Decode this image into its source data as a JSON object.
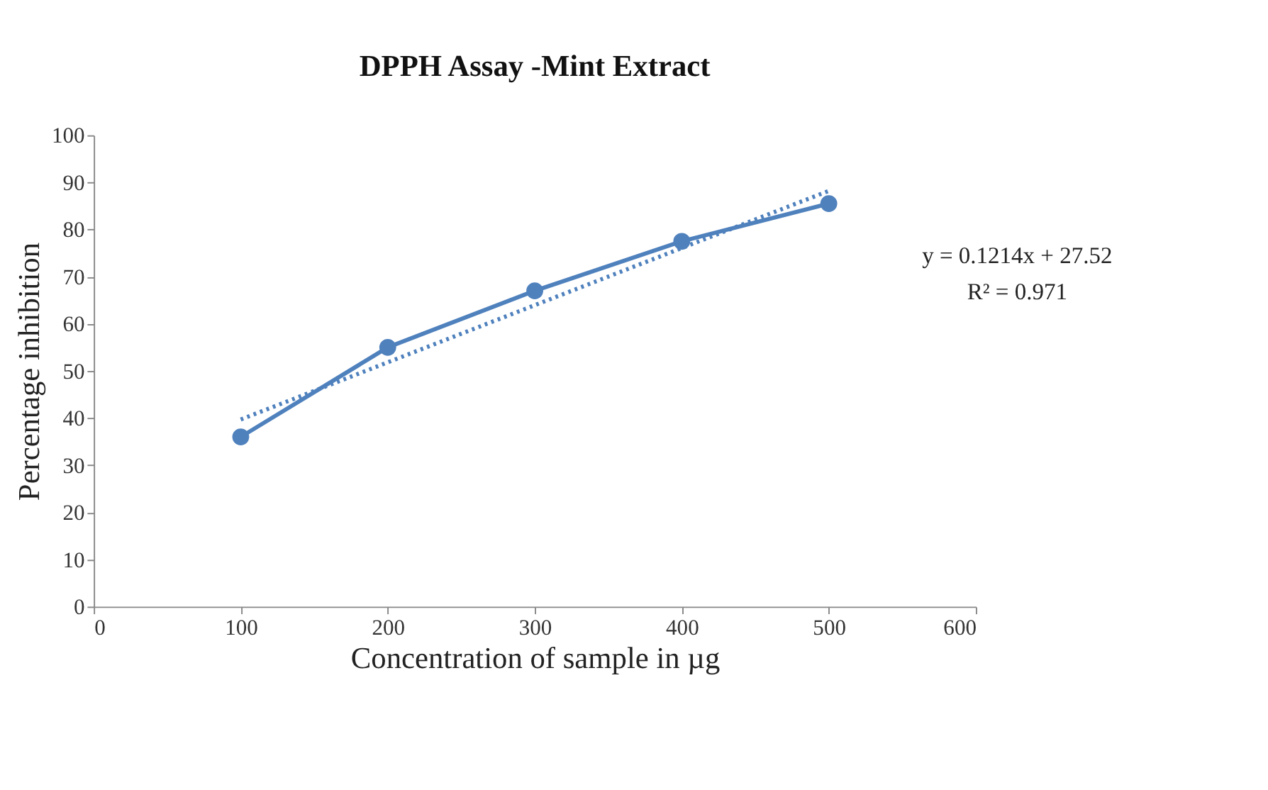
{
  "chart_data": {
    "type": "line",
    "title": "DPPH  Assay -Mint Extract",
    "xlabel": "Concentration of sample in µg",
    "ylabel": "Percentage inhibition",
    "x": [
      100,
      200,
      300,
      400,
      500
    ],
    "series": [
      {
        "color": "#4f81bd",
        "values": [
          36,
          55,
          67,
          77.5,
          85.5
        ],
        "marker": "circle",
        "line_style": "solid"
      },
      {
        "type": "line",
        "color": "#4f81bd",
        "x": [
          100,
          500
        ],
        "values": [
          39.7,
          88.2
        ],
        "marker": "none",
        "line_style": "dotted"
      }
    ],
    "xlim": [
      0,
      600
    ],
    "xticks": [
      0,
      100,
      200,
      300,
      400,
      500,
      600
    ],
    "ylim": [
      0,
      100
    ],
    "yticks": [
      0,
      10,
      20,
      30,
      40,
      50,
      60,
      70,
      80,
      90,
      100
    ],
    "grid": false,
    "legend": false,
    "annotations": [
      "y = 0.1214x  + 27.52",
      "R² = 0.971"
    ]
  }
}
